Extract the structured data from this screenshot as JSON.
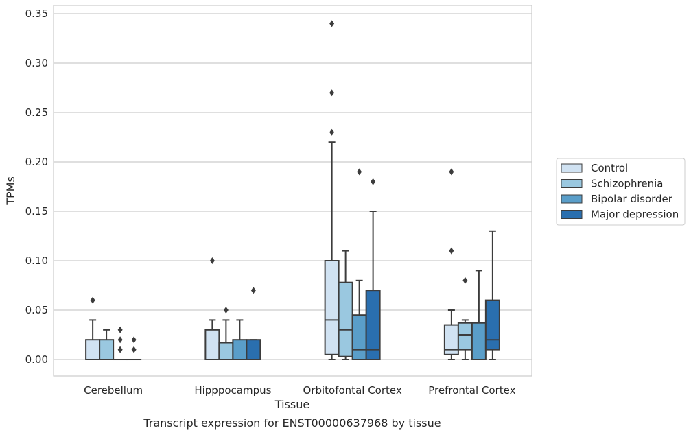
{
  "chart_data": {
    "type": "boxplot",
    "title": "",
    "caption": "Transcript expression for ENST00000637968 by tissue",
    "xlabel": "Tissue",
    "ylabel": "TPMs",
    "ylim": [
      -0.017,
      0.357
    ],
    "yticks": [
      "0.00",
      "0.05",
      "0.10",
      "0.15",
      "0.20",
      "0.25",
      "0.30",
      "0.35"
    ],
    "ytick_values": [
      0,
      0.05,
      0.1,
      0.15,
      0.2,
      0.25,
      0.3,
      0.35
    ],
    "grid": "horizontal",
    "legend_position": "right",
    "categories": [
      "Cerebellum",
      "Hipppocampus",
      "Orbitofontal Cortex",
      "Prefrontal Cortex"
    ],
    "series": [
      {
        "name": "Control",
        "color": "#d0e2f2",
        "boxes": [
          {
            "whislo": 0,
            "q1": 0,
            "med": 0,
            "q3": 0.02,
            "whishi": 0.04,
            "fliers": [
              0.06
            ]
          },
          {
            "whislo": 0,
            "q1": 0,
            "med": 0,
            "q3": 0.03,
            "whishi": 0.04,
            "fliers": [
              0.1
            ]
          },
          {
            "whislo": 0,
            "q1": 0.005,
            "med": 0.04,
            "q3": 0.1,
            "whishi": 0.22,
            "fliers": [
              0.23,
              0.27,
              0.34
            ]
          },
          {
            "whislo": 0,
            "q1": 0.005,
            "med": 0.01,
            "q3": 0.035,
            "whishi": 0.05,
            "fliers": [
              0.11,
              0.19
            ]
          }
        ]
      },
      {
        "name": "Schizophrenia",
        "color": "#9ac8e0",
        "boxes": [
          {
            "whislo": 0,
            "q1": 0,
            "med": 0,
            "q3": 0.02,
            "whishi": 0.03,
            "fliers": []
          },
          {
            "whislo": 0,
            "q1": 0,
            "med": 0,
            "q3": 0.017,
            "whishi": 0.04,
            "fliers": [
              0.05
            ]
          },
          {
            "whislo": 0,
            "q1": 0.003,
            "med": 0.03,
            "q3": 0.078,
            "whishi": 0.11,
            "fliers": []
          },
          {
            "whislo": 0,
            "q1": 0.01,
            "med": 0.025,
            "q3": 0.037,
            "whishi": 0.04,
            "fliers": [
              0.08
            ]
          }
        ]
      },
      {
        "name": "Bipolar disorder",
        "color": "#5a9ec9",
        "boxes": [
          {
            "whislo": 0,
            "q1": 0,
            "med": 0,
            "q3": 0,
            "whishi": 0,
            "fliers": [
              0.01,
              0.02,
              0.03
            ]
          },
          {
            "whislo": 0,
            "q1": 0,
            "med": 0,
            "q3": 0.02,
            "whishi": 0.04,
            "fliers": []
          },
          {
            "whislo": 0,
            "q1": 0,
            "med": 0.01,
            "q3": 0.045,
            "whishi": 0.08,
            "fliers": [
              0.19
            ]
          },
          {
            "whislo": 0,
            "q1": 0,
            "med": 0,
            "q3": 0.037,
            "whishi": 0.09,
            "fliers": []
          }
        ]
      },
      {
        "name": "Major depression",
        "color": "#2a6faf",
        "boxes": [
          {
            "whislo": 0,
            "q1": 0,
            "med": 0,
            "q3": 0,
            "whishi": 0,
            "fliers": [
              0.01,
              0.02
            ]
          },
          {
            "whislo": 0,
            "q1": 0,
            "med": 0,
            "q3": 0.02,
            "whishi": 0.02,
            "fliers": [
              0.07
            ]
          },
          {
            "whislo": 0,
            "q1": 0,
            "med": 0.01,
            "q3": 0.07,
            "whishi": 0.15,
            "fliers": [
              0.18
            ]
          },
          {
            "whislo": 0,
            "q1": 0.01,
            "med": 0.02,
            "q3": 0.06,
            "whishi": 0.13,
            "fliers": []
          }
        ]
      }
    ]
  }
}
